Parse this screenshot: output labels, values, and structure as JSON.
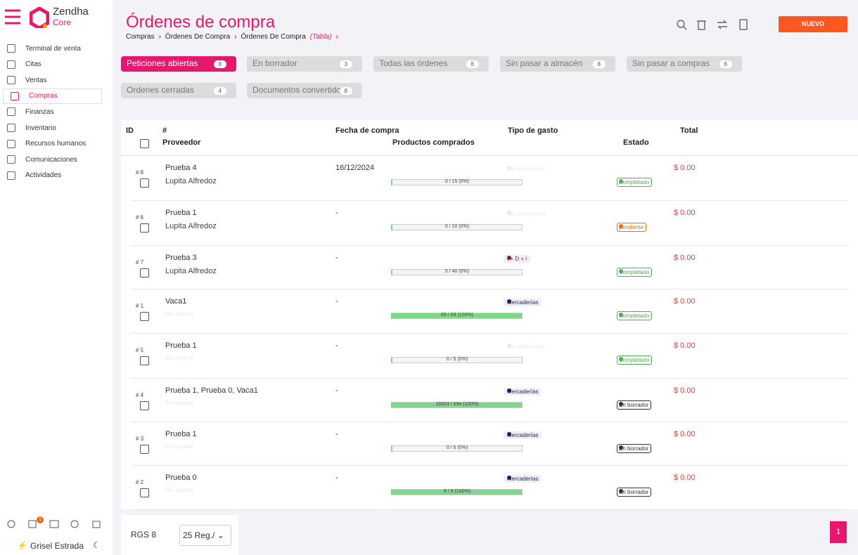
{
  "brand": {
    "name": "Zendha",
    "sub": "Core"
  },
  "nav": [
    "Terminal de venta",
    "Citas",
    "Ventas",
    "Compras",
    "Finanzas",
    "Inventario",
    "Recursos humanos",
    "Comunicaciones",
    "Actividades"
  ],
  "user": {
    "name": "Grisel Estrada",
    "notifications": "1"
  },
  "header": {
    "title": "Órdenes de compra",
    "breadcrumb": [
      "Compras",
      "Órdenes De Compra",
      "Órdenes De Compra"
    ],
    "breadcrumb_note": "(Tabla)",
    "new_button": "NUEVO"
  },
  "tabs": [
    {
      "label": "Peticiones abiertas",
      "count": 8
    },
    {
      "label": "En borrador",
      "count": 3
    },
    {
      "label": "Todas las órdenes",
      "count": 8
    },
    {
      "label": "Sin pasar a almacén",
      "count": 8
    },
    {
      "label": "Sin pasar a compras",
      "count": 8
    },
    {
      "label": "Ordenes cerradas",
      "count": 4
    },
    {
      "label": "Documentos convertidos",
      "count": 8
    }
  ],
  "table": {
    "columns": [
      "ID",
      "#",
      "Fecha de compra",
      "Tipo de gasto",
      "Total",
      "Proveedor",
      "Productos comprados",
      "Estado"
    ],
    "rows": [
      {
        "id": "# 8",
        "name": "Prueba 4",
        "supplier": "Lupita Alfredoz",
        "date": "16/12/2024",
        "expense": "Sin seleccionar",
        "expense_color": "#e8e8ee",
        "progress_label": "0 / 15 (0%)",
        "progress": 0,
        "status": "Completado",
        "status_color": "#4caf50",
        "total": "$ 0.00"
      },
      {
        "id": "# 6",
        "name": "Prueba 1",
        "supplier": "Lupita Alfredoz",
        "date": "-",
        "expense": "Sin seleccionar",
        "expense_color": "#e8e8ee",
        "progress_label": "0 / 10 (0%)",
        "progress": 0,
        "status": "pendiente",
        "status_color": "#ef6c00",
        "total": "$ 0.00"
      },
      {
        "id": "# 7",
        "name": "Prueba 3",
        "supplier": "Lupita Alfredoz",
        "date": "-",
        "expense": "I + D + i",
        "expense_color": "#7a1f3d",
        "progress_label": "0 / 40 (0%)",
        "progress": 0,
        "status": "Completado",
        "status_color": "#4caf50",
        "total": "$ 0.00"
      },
      {
        "id": "# 1",
        "name": "Vaca1",
        "supplier": "Sin asignar",
        "date": "-",
        "expense": "Mercaderías",
        "expense_color": "#1a2550",
        "progress_label": "69 / 69 (100%)",
        "progress": 100,
        "status": "Completado",
        "status_color": "#4caf50",
        "total": "$ 0.00"
      },
      {
        "id": "# 5",
        "name": "Prueba 1",
        "supplier": "Sin asignar",
        "date": "-",
        "expense": "Sin seleccionar",
        "expense_color": "#e8e8ee",
        "progress_label": "0 / 5 (0%)",
        "progress": 0,
        "status": "Completado",
        "status_color": "#4caf50",
        "total": "$ 0.00"
      },
      {
        "id": "# 4",
        "name": "Prueba 1, Prueba 0, Vaca1",
        "supplier": "Sin asignar",
        "date": "-",
        "expense": "Mercaderías",
        "expense_color": "#1a2550",
        "progress_label": "16924 / 594 (100%)",
        "progress": 100,
        "status": "En borrador",
        "status_color": "#333333",
        "total": "$ 0.00"
      },
      {
        "id": "# 3",
        "name": "Prueba 1",
        "supplier": "Sin asignar",
        "date": "-",
        "expense": "Mercaderías",
        "expense_color": "#1a2550",
        "progress_label": "0 / 5 (0%)",
        "progress": 0,
        "status": "En borrador",
        "status_color": "#333333",
        "total": "$ 0.00"
      },
      {
        "id": "# 2",
        "name": "Prueba 0",
        "supplier": "Sin asignar",
        "date": "-",
        "expense": "Mercaderías",
        "expense_color": "#1a2550",
        "progress_label": "9 / 9 (100%)",
        "progress": 100,
        "status": "En borrador",
        "status_color": "#333333",
        "total": "$ 0.00"
      }
    ]
  },
  "footer": {
    "records": "RGS 8",
    "per_page": "25 Reg./",
    "page": "1"
  }
}
